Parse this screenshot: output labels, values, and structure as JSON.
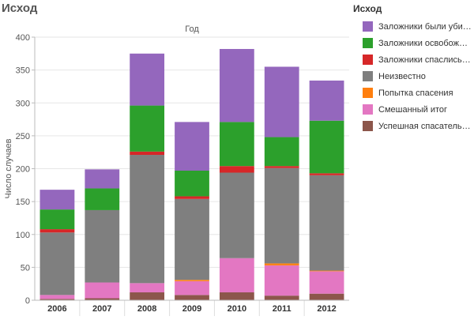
{
  "page_title": "Исход",
  "legend": {
    "title": "Исход",
    "items": [
      {
        "key": "killed",
        "label": "Заложники были убиты",
        "color": "#9467bd"
      },
      {
        "key": "freed",
        "label": "Заложники освобожден..",
        "color": "#2ca02c"
      },
      {
        "key": "escaped",
        "label": "Заложники спаслись бе..",
        "color": "#d62728"
      },
      {
        "key": "unknown",
        "label": "Неизвестно",
        "color": "#7f7f7f"
      },
      {
        "key": "attempt",
        "label": "Попытка спасения",
        "color": "#ff7f0e"
      },
      {
        "key": "mixed",
        "label": "Смешанный итог",
        "color": "#e377c2"
      },
      {
        "key": "success",
        "label": "Успешная спасательна..",
        "color": "#8c564b"
      }
    ]
  },
  "chart_data": {
    "type": "bar",
    "stacked": true,
    "title": "Год",
    "xlabel": "",
    "ylabel": "Число случаев",
    "ylim": [
      0,
      400
    ],
    "yticks": [
      0,
      50,
      100,
      150,
      200,
      250,
      300,
      350,
      400
    ],
    "grid": true,
    "legend_position": "right",
    "categories": [
      "2006",
      "2007",
      "2008",
      "2009",
      "2010",
      "2011",
      "2012"
    ],
    "series": [
      {
        "key": "success",
        "name": "Успешная спасательна..",
        "color": "#8c564b",
        "values": [
          2,
          3,
          12,
          8,
          12,
          7,
          10
        ]
      },
      {
        "key": "mixed",
        "name": "Смешанный итог",
        "color": "#e377c2",
        "values": [
          6,
          24,
          14,
          21,
          52,
          46,
          34
        ]
      },
      {
        "key": "attempt",
        "name": "Попытка спасения",
        "color": "#ff7f0e",
        "values": [
          0,
          0,
          0,
          2,
          0,
          3,
          1
        ]
      },
      {
        "key": "unknown",
        "name": "Неизвестно",
        "color": "#7f7f7f",
        "values": [
          95,
          110,
          195,
          123,
          130,
          145,
          145
        ]
      },
      {
        "key": "escaped",
        "name": "Заложники спаслись бе..",
        "color": "#d62728",
        "values": [
          5,
          0,
          5,
          4,
          10,
          3,
          3
        ]
      },
      {
        "key": "freed",
        "name": "Заложники освобожден..",
        "color": "#2ca02c",
        "values": [
          30,
          33,
          70,
          39,
          67,
          44,
          80
        ]
      },
      {
        "key": "killed",
        "name": "Заложники были убиты",
        "color": "#9467bd",
        "values": [
          30,
          29,
          79,
          74,
          111,
          107,
          61
        ]
      }
    ]
  }
}
